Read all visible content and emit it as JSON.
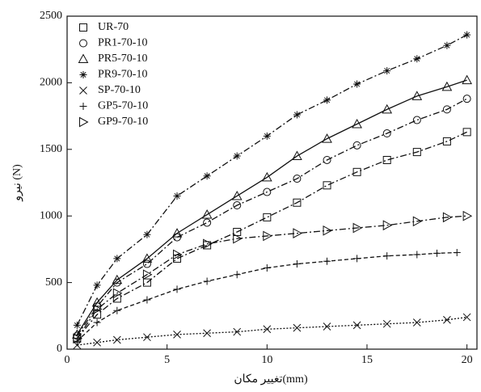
{
  "chart_data": {
    "type": "scatter",
    "xlabel": "تغییر مکان(mm)",
    "ylabel": "نیرو (N)",
    "xlim": [
      0,
      20.5
    ],
    "ylim": [
      0,
      2500
    ],
    "xticks": [
      0,
      5,
      10,
      15,
      20
    ],
    "yticks": [
      0,
      500,
      1000,
      1500,
      2000,
      2500
    ],
    "legend": "upper left",
    "series": [
      {
        "name": "UR-70",
        "color": "#111111",
        "marker": "square",
        "line": "dashdot",
        "x": [
          0.5,
          1.5,
          2.5,
          4,
          5.5,
          7,
          8.5,
          10,
          11.5,
          13,
          14.5,
          16,
          17.5,
          19,
          20
        ],
        "values": [
          80,
          260,
          380,
          500,
          680,
          780,
          880,
          990,
          1100,
          1230,
          1330,
          1420,
          1480,
          1560,
          1630
        ]
      },
      {
        "name": "PR1-70-10",
        "color": "#111111",
        "marker": "circle",
        "line": "dashdot",
        "x": [
          0.5,
          1.5,
          2.5,
          4,
          5.5,
          7,
          8.5,
          10,
          11.5,
          13,
          14.5,
          16,
          17.5,
          19,
          20
        ],
        "values": [
          100,
          320,
          500,
          640,
          840,
          950,
          1080,
          1180,
          1280,
          1420,
          1530,
          1620,
          1720,
          1800,
          1880
        ]
      },
      {
        "name": "PR5-70-10",
        "color": "#111111",
        "marker": "triangle",
        "line": "solid",
        "x": [
          0.5,
          1.5,
          2.5,
          4,
          5.5,
          7,
          8.5,
          10,
          11.5,
          13,
          14.5,
          16,
          17.5,
          19,
          20
        ],
        "values": [
          110,
          350,
          520,
          680,
          870,
          1010,
          1150,
          1290,
          1450,
          1580,
          1690,
          1800,
          1900,
          1970,
          2020
        ]
      },
      {
        "name": "PR9-70-10",
        "color": "#111111",
        "marker": "star",
        "line": "dashdot",
        "x": [
          0.5,
          1.5,
          2.5,
          4,
          5.5,
          7,
          8.5,
          10,
          11.5,
          13,
          14.5,
          16,
          17.5,
          19,
          20
        ],
        "values": [
          180,
          480,
          680,
          860,
          1150,
          1300,
          1450,
          1600,
          1760,
          1870,
          1990,
          2090,
          2180,
          2280,
          2360
        ]
      },
      {
        "name": "SP-70-10",
        "color": "#111111",
        "marker": "x",
        "line": "dotted",
        "x": [
          0.5,
          1.5,
          2.5,
          4,
          5.5,
          7,
          8.5,
          10,
          11.5,
          13,
          14.5,
          16,
          17.5,
          19,
          20
        ],
        "values": [
          30,
          50,
          70,
          90,
          110,
          120,
          130,
          150,
          160,
          170,
          180,
          190,
          200,
          220,
          240
        ]
      },
      {
        "name": "GP5-70-10",
        "color": "#111111",
        "marker": "plus",
        "line": "dashed",
        "x": [
          0.5,
          1.5,
          2.5,
          4,
          5.5,
          7,
          8.5,
          10,
          11.5,
          13,
          14.5,
          16,
          17.5,
          18.5,
          19.5
        ],
        "values": [
          60,
          200,
          290,
          370,
          450,
          510,
          560,
          610,
          640,
          660,
          680,
          700,
          710,
          720,
          725
        ]
      },
      {
        "name": "GP9-70-10",
        "color": "#111111",
        "marker": "rtriangle",
        "line": "dashdot",
        "x": [
          0.5,
          1.5,
          2.5,
          4,
          5.5,
          7,
          8.5,
          10,
          11.5,
          13,
          14.5,
          16,
          17.5,
          19,
          20
        ],
        "values": [
          80,
          300,
          420,
          560,
          710,
          790,
          830,
          850,
          870,
          890,
          910,
          930,
          960,
          990,
          1000
        ]
      }
    ]
  }
}
